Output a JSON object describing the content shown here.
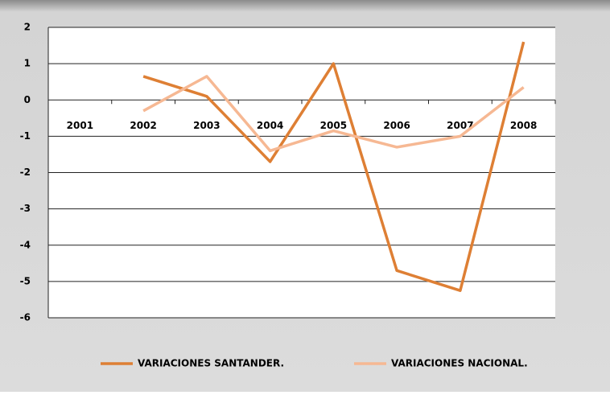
{
  "chart_data": {
    "type": "line",
    "categories": [
      "2001",
      "2002",
      "2003",
      "2004",
      "2005",
      "2006",
      "2007",
      "2008"
    ],
    "series": [
      {
        "name": "VARIACIONES SANTANDER.",
        "color": "#de7f34",
        "values": [
          null,
          0.65,
          0.1,
          -1.7,
          1.0,
          -4.7,
          -5.25,
          1.6
        ]
      },
      {
        "name": "VARIACIONES NACIONAL.",
        "color": "#f6b893",
        "values": [
          null,
          -0.3,
          0.65,
          -1.4,
          -0.85,
          -1.3,
          -1.0,
          0.35
        ]
      }
    ],
    "ylim": [
      -6,
      2
    ],
    "yticks": [
      -6,
      -5,
      -4,
      -3,
      -2,
      -1,
      0,
      1,
      2
    ],
    "grid": true,
    "legend": "bottom"
  }
}
